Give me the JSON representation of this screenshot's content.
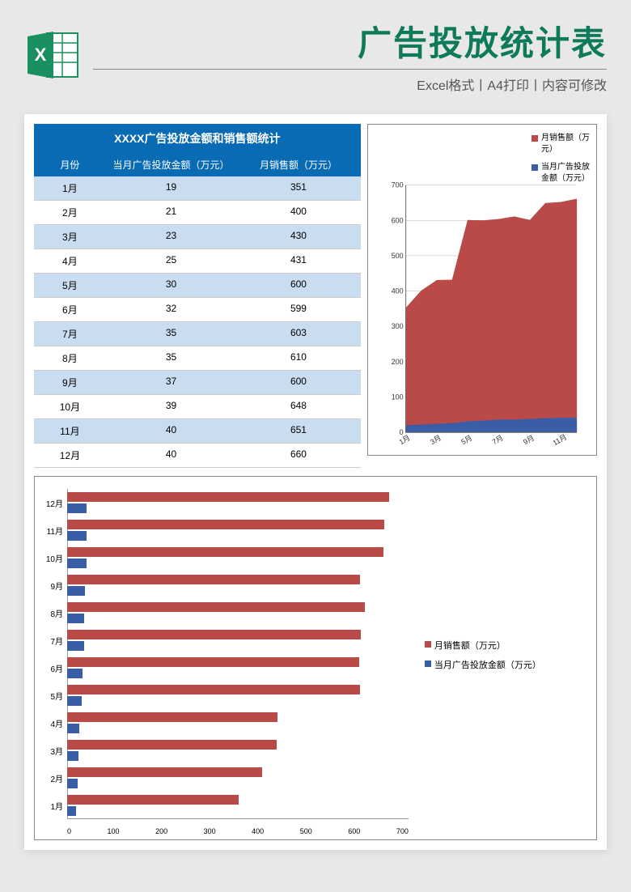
{
  "header": {
    "main_title": "广告投放统计表",
    "subtitle": "Excel格式丨A4打印丨内容可修改"
  },
  "table": {
    "title": "XXXX广告投放金额和销售额统计",
    "col_month": "月份",
    "col_ad": "当月广告投放金额（万元）",
    "col_sales": "月销售额（万元）",
    "rows": [
      {
        "month": "1月",
        "ad": 19,
        "sales": 351
      },
      {
        "month": "2月",
        "ad": 21,
        "sales": 400
      },
      {
        "month": "3月",
        "ad": 23,
        "sales": 430
      },
      {
        "month": "4月",
        "ad": 25,
        "sales": 431
      },
      {
        "month": "5月",
        "ad": 30,
        "sales": 600
      },
      {
        "month": "6月",
        "ad": 32,
        "sales": 599
      },
      {
        "month": "7月",
        "ad": 35,
        "sales": 603
      },
      {
        "month": "8月",
        "ad": 35,
        "sales": 610
      },
      {
        "month": "9月",
        "ad": 37,
        "sales": 600
      },
      {
        "month": "10月",
        "ad": 39,
        "sales": 648
      },
      {
        "month": "11月",
        "ad": 40,
        "sales": 651
      },
      {
        "month": "12月",
        "ad": 40,
        "sales": 660
      }
    ]
  },
  "area_chart": {
    "type": "area",
    "legend_sales": "月销售额（万元）",
    "legend_ad": "当月广告投放金额（万元）",
    "ylim": [
      0,
      700
    ],
    "ytick_step": 100,
    "xlabels": [
      "1月",
      "3月",
      "5月",
      "7月",
      "9月",
      "11月"
    ],
    "sales_color": "#b94a48",
    "ad_color": "#3a5da8",
    "grid_color": "#bbb",
    "background": "#ffffff"
  },
  "bar_chart": {
    "type": "horizontal_bar",
    "legend_sales": "月销售额（万元）",
    "legend_ad": "当月广告投放金额（万元）",
    "xlim": [
      0,
      700
    ],
    "xtick_step": 100,
    "xticks": [
      "0",
      "100",
      "200",
      "300",
      "400",
      "500",
      "600",
      "700"
    ],
    "sales_color": "#b94a48",
    "ad_color": "#3a5da8",
    "background": "#ffffff"
  },
  "colors": {
    "header_green": "#0f7a5a",
    "table_header_blue": "#0a6bb5",
    "row_alt_blue": "#c9dcf0",
    "page_bg": "#e8e8e8"
  }
}
